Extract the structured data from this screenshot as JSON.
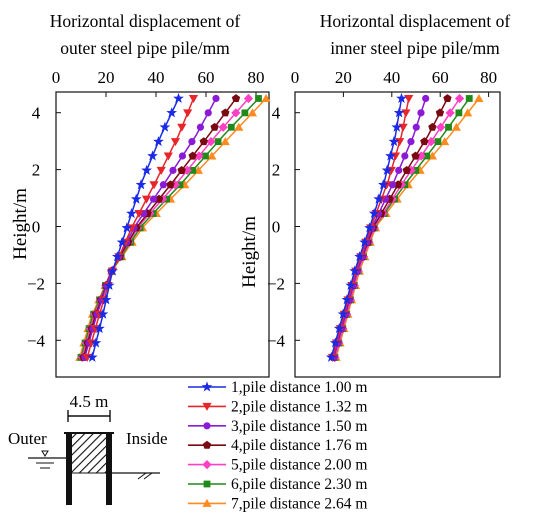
{
  "chart_data": [
    {
      "type": "line",
      "title_lines": [
        "Horizontal displacement of",
        "outer steel pipe pile/mm"
      ],
      "xlabel": "Horizontal displacement of outer steel pipe pile/mm",
      "ylabel": "Height/m",
      "xlim": [
        0,
        85
      ],
      "ylim": [
        -5,
        4.6
      ],
      "xticks": [
        "0",
        "20",
        "40",
        "60",
        "80"
      ],
      "yticks": [
        "4",
        "2",
        "0",
        "−2",
        "−4"
      ],
      "x_axis_position": "top",
      "grid": false,
      "series": [
        {
          "name": "1, pile distance 1.00 m",
          "color": "#1a2ae6",
          "marker": "star",
          "height": [
            -4.6,
            -3.2,
            -1.6,
            0.0,
            1.6,
            3.2,
            4.5
          ],
          "values": [
            14.5,
            18.5,
            22.5,
            28.5,
            34.5,
            42.0,
            49.0
          ]
        },
        {
          "name": "2, pile distance 1.32 m",
          "color": "#e6262b",
          "marker": "triangle-down",
          "height": [
            -4.6,
            -3.2,
            -1.6,
            0.0,
            1.6,
            3.2,
            4.5
          ],
          "values": [
            12.5,
            17.0,
            22.5,
            30.5,
            40.0,
            49.0,
            55.0
          ]
        },
        {
          "name": "3, pile distance 1.50 m",
          "color": "#8a1ad6",
          "marker": "circle",
          "height": [
            -4.6,
            -3.2,
            -1.6,
            0.0,
            1.6,
            3.2,
            4.5
          ],
          "values": [
            11.5,
            16.0,
            22.0,
            31.5,
            44.0,
            56.0,
            64.0
          ]
        },
        {
          "name": "4, pile distance 1.76 m",
          "color": "#7a0a12",
          "marker": "pentagon",
          "height": [
            -4.6,
            -3.2,
            -1.6,
            0.0,
            1.6,
            3.2,
            4.5
          ],
          "values": [
            11.0,
            15.5,
            22.0,
            32.5,
            47.0,
            61.0,
            72.0
          ]
        },
        {
          "name": "5, pile distance 2.00 m",
          "color": "#ff3fc4",
          "marker": "diamond",
          "height": [
            -4.6,
            -3.2,
            -1.6,
            0.0,
            1.6,
            3.2,
            4.5
          ],
          "values": [
            10.5,
            15.0,
            22.0,
            33.0,
            49.0,
            64.0,
            77.0
          ]
        },
        {
          "name": "6, pile distance 2.30 m",
          "color": "#1f8a1a",
          "marker": "square",
          "height": [
            -4.6,
            -3.2,
            -1.6,
            0.0,
            1.6,
            3.2,
            4.5
          ],
          "values": [
            10.0,
            14.5,
            22.0,
            34.0,
            51.0,
            67.0,
            81.0
          ]
        },
        {
          "name": "7, pile distance 2.64 m",
          "color": "#ff8a1f",
          "marker": "triangle-up",
          "height": [
            -4.6,
            -3.2,
            -1.6,
            0.0,
            1.6,
            3.2,
            4.5
          ],
          "values": [
            9.5,
            14.0,
            22.0,
            35.0,
            53.0,
            70.0,
            84.0
          ]
        }
      ]
    },
    {
      "type": "line",
      "title_lines": [
        "Horizontal displacement of",
        "inner steel pipe pile/mm"
      ],
      "xlabel": "Horizontal displacement of inner steel pipe pile/mm",
      "ylabel": "Height/m",
      "xlim": [
        0,
        80
      ],
      "ylim": [
        -5,
        4.6
      ],
      "xticks": [
        "0",
        "20",
        "40",
        "60",
        "80"
      ],
      "yticks": [
        "4",
        "2",
        "0",
        "−2",
        "−4"
      ],
      "x_axis_position": "top",
      "grid": false,
      "series": [
        {
          "name": "1, pile distance 1.00 m",
          "color": "#1a2ae6",
          "marker": "star",
          "height": [
            -4.6,
            -3.2,
            -1.6,
            0.0,
            1.6,
            3.2,
            4.5
          ],
          "values": [
            15.0,
            19.5,
            24.5,
            31.0,
            37.0,
            41.5,
            44.0
          ]
        },
        {
          "name": "2, pile distance 1.32 m",
          "color": "#e6262b",
          "marker": "triangle-down",
          "height": [
            -4.6,
            -3.2,
            -1.6,
            0.0,
            1.6,
            3.2,
            4.5
          ],
          "values": [
            15.5,
            20.0,
            25.0,
            31.5,
            38.5,
            44.0,
            47.0
          ]
        },
        {
          "name": "3, pile distance 1.50 m",
          "color": "#8a1ad6",
          "marker": "circle",
          "height": [
            -4.6,
            -3.2,
            -1.6,
            0.0,
            1.6,
            3.2,
            4.5
          ],
          "values": [
            16.0,
            20.5,
            25.5,
            32.0,
            41.0,
            49.0,
            54.0
          ]
        },
        {
          "name": "4, pile distance 1.76 m",
          "color": "#7a0a12",
          "marker": "pentagon",
          "height": [
            -4.6,
            -3.2,
            -1.6,
            0.0,
            1.6,
            3.2,
            4.5
          ],
          "values": [
            16.0,
            20.5,
            25.5,
            32.5,
            43.5,
            55.0,
            63.0
          ]
        },
        {
          "name": "5, pile distance 2.00 m",
          "color": "#ff3fc4",
          "marker": "diamond",
          "height": [
            -4.6,
            -3.2,
            -1.6,
            0.0,
            1.6,
            3.2,
            4.5
          ],
          "values": [
            16.5,
            21.0,
            26.0,
            33.0,
            45.0,
            58.0,
            68.0
          ]
        },
        {
          "name": "6, pile distance 2.30 m",
          "color": "#1f8a1a",
          "marker": "square",
          "height": [
            -4.6,
            -3.2,
            -1.6,
            0.0,
            1.6,
            3.2,
            4.5
          ],
          "values": [
            16.5,
            21.0,
            26.0,
            33.0,
            46.5,
            61.0,
            72.0
          ]
        },
        {
          "name": "7, pile distance 2.64 m",
          "color": "#ff8a1f",
          "marker": "triangle-up",
          "height": [
            -4.6,
            -3.2,
            -1.6,
            0.0,
            1.6,
            3.2,
            4.5
          ],
          "values": [
            17.0,
            21.5,
            26.5,
            33.5,
            48.0,
            64.0,
            76.0
          ]
        }
      ]
    }
  ],
  "legend": {
    "placement": "bottom-right",
    "items": [
      "1,pile distance 1.00 m",
      "2,pile distance 1.32 m",
      "3,pile distance 1.50 m",
      "4,pile distance 1.76 m",
      "5,pile distance 2.00 m",
      "6,pile distance 2.30 m",
      "7,pile distance 2.64 m"
    ]
  },
  "schematic": {
    "width_label": "4.5 m",
    "outer_label": "Outer",
    "inner_label": "Inside"
  }
}
